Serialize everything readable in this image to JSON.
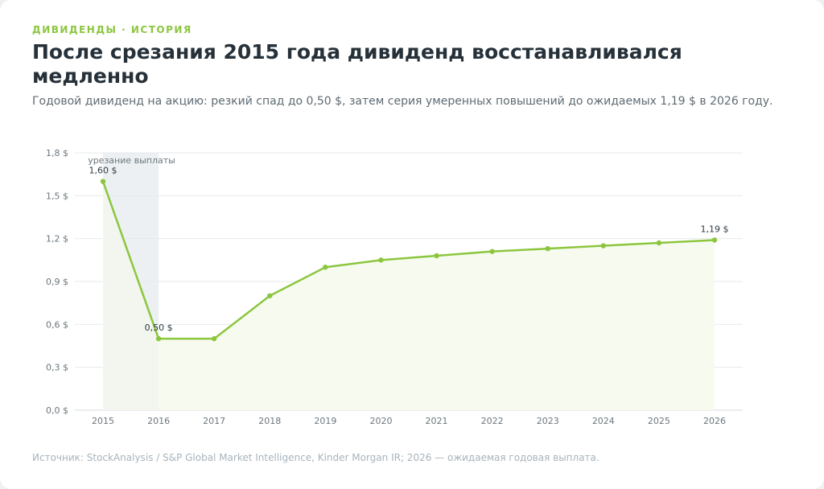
{
  "header": {
    "eyebrow": "ДИВИДЕНДЫ · ИСТОРИЯ",
    "title": "После срезания 2015 года дивиденд восстанавливался медленно",
    "subtitle": "Годовой дивиденд на акцию: резкий спад до 0,50 $, затем серия умеренных повышений до ожидаемых 1,19 $ в 2026 году."
  },
  "footer": {
    "source": "Источник: StockAnalysis / S&P Global Market Intelligence, Kinder Morgan IR; 2026 — ожидаемая годовая выплата."
  },
  "colors": {
    "line": "#8cc63f",
    "area": "#f7fbef",
    "band": "#e8edef",
    "grid": "#e6e9eb",
    "accent": "#8cc63f"
  },
  "chart_data": {
    "type": "area",
    "title": "",
    "xlabel": "",
    "ylabel": "",
    "x": [
      "2015",
      "2016",
      "2017",
      "2018",
      "2019",
      "2020",
      "2021",
      "2022",
      "2023",
      "2024",
      "2025",
      "2026"
    ],
    "series": [
      {
        "values": [
          1.6,
          0.5,
          0.5,
          0.8,
          1.0,
          1.05,
          1.08,
          1.11,
          1.13,
          1.15,
          1.17,
          1.19
        ]
      }
    ],
    "ylim": [
      0,
      1.8
    ],
    "yticks": [
      0,
      0.3,
      0.6,
      0.9,
      1.2,
      1.5,
      1.8
    ],
    "ytick_labels": [
      "0,0 $",
      "0,3 $",
      "0,6 $",
      "0,9 $",
      "1,2 $",
      "1,5 $",
      "1,8 $"
    ],
    "grid": true,
    "legend": "none",
    "data_labels": [
      {
        "x": "2015",
        "text": "1,60 $"
      },
      {
        "x": "2016",
        "text": "0,50 $"
      },
      {
        "x": "2026",
        "text": "1,19 $"
      }
    ],
    "highlight_band": {
      "from": "2015",
      "to": "2016",
      "label": "урезание выплаты"
    }
  }
}
